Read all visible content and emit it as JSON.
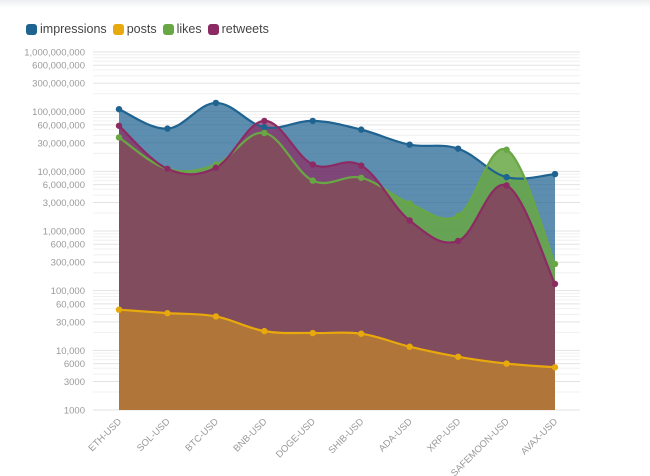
{
  "chart_data": {
    "type": "area",
    "categories": [
      "ETH-USD",
      "SOL-USD",
      "BTC-USD",
      "BNB-USD",
      "DOGE-USD",
      "SHIB-USD",
      "ADA-USD",
      "XRP-USD",
      "SAFEMOON-USD",
      "AVAX-USD"
    ],
    "series": [
      {
        "name": "impressions",
        "color": "#1f6391",
        "values": [
          110000000,
          52000000,
          140000000,
          55000000,
          70000000,
          50000000,
          28000000,
          24000000,
          8000000,
          9000000
        ]
      },
      {
        "name": "posts",
        "color": "#e8a90c",
        "values": [
          48000,
          42000,
          37000,
          21000,
          19500,
          19000,
          11500,
          7800,
          6000,
          5200
        ]
      },
      {
        "name": "likes",
        "color": "#69a745",
        "values": [
          37000000,
          11000000,
          13000000,
          44000000,
          7000000,
          7800000,
          2900000,
          1800000,
          23000000,
          280000
        ]
      },
      {
        "name": "retweets",
        "color": "#8c2b63",
        "values": [
          58000000,
          11000000,
          11500000,
          70000000,
          13000000,
          12500000,
          1500000,
          680000,
          5800000,
          130000
        ]
      }
    ],
    "y_scale": "log",
    "ylim": [
      1000,
      1000000000
    ],
    "ytick_values": [
      1000,
      3000,
      6000,
      10000,
      30000,
      60000,
      100000,
      300000,
      600000,
      1000000,
      3000000,
      6000000,
      10000000,
      30000000,
      60000000,
      100000000,
      300000000,
      600000000,
      1000000000
    ],
    "ytick_labels": [
      "1000",
      "3000",
      "6000",
      "10,000",
      "30,000",
      "60,000",
      "100,000",
      "300,000",
      "600,000",
      "1,000,000",
      "3,000,000",
      "6,000,000",
      "10,000,000",
      "30,000,000",
      "60,000,000",
      "100,000,000",
      "300,000,000",
      "600,000,000",
      "1,000,000,000"
    ],
    "grid": true,
    "legend_position": "top-left"
  }
}
